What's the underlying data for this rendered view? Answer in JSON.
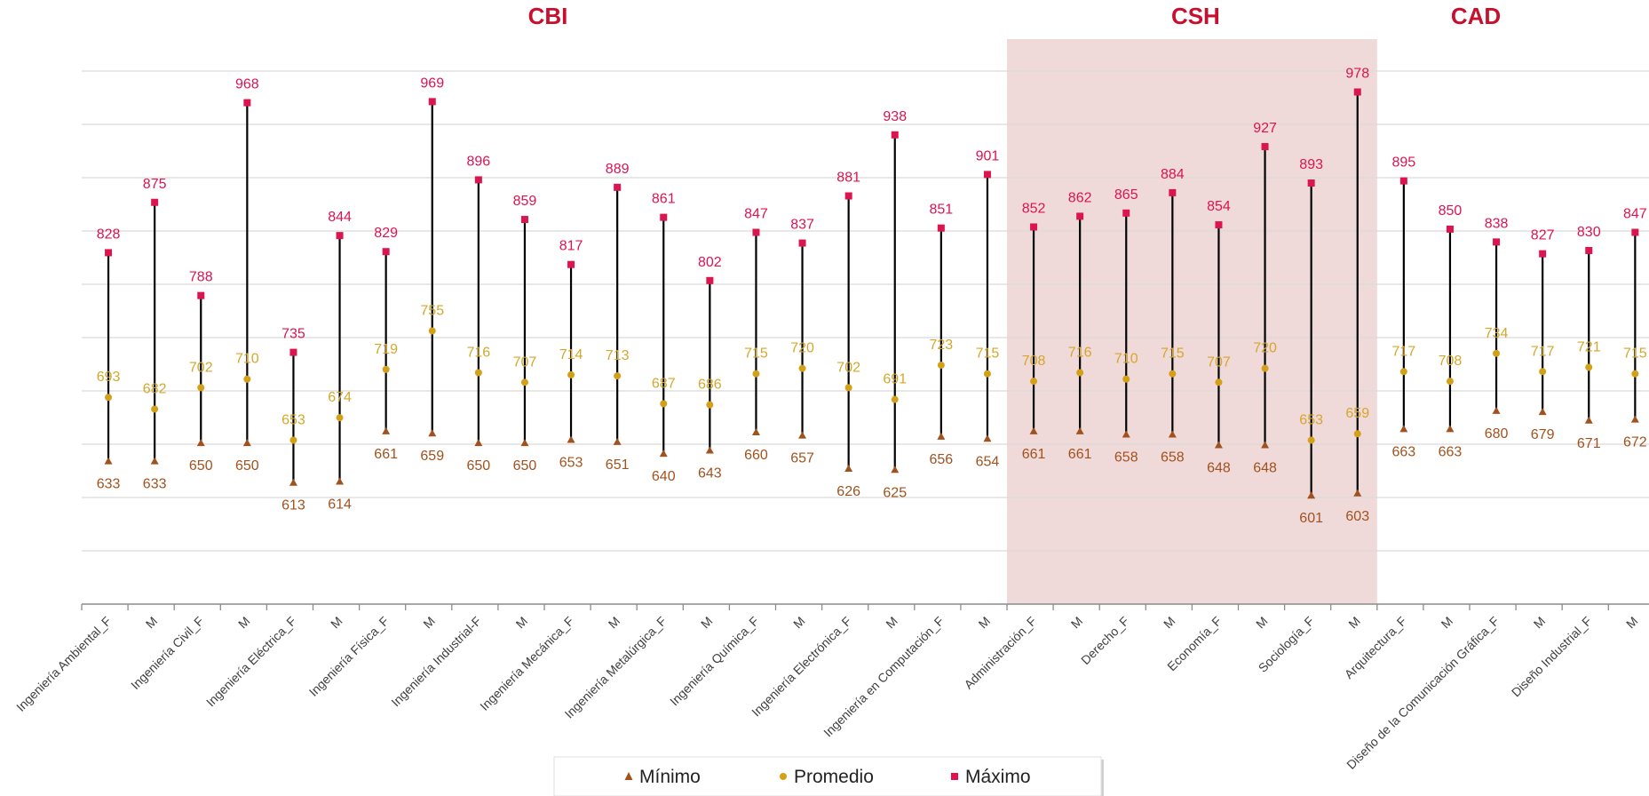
{
  "chart_data": {
    "type": "line",
    "subtype": "high-low-average",
    "categories": [
      "Ingeniería Ambiental_F",
      "M",
      "Ingeniería Civil_F",
      "M",
      "Ingeniería Eléctrica_F",
      "M",
      "Ingeniería Física_F",
      "M",
      "Ingeniería Industrial-F",
      "M",
      "Ingeniería Mecánica_F",
      "M",
      "Ingeniería Metalúrgica_F",
      "M",
      "Ingeniería Química_F",
      "M",
      "Ingeniería Electrónica_F",
      "M",
      "Ingeniería en Computación_F",
      "M",
      "Administración_F",
      "M",
      "Derecho_F",
      "M",
      "Economía_F",
      "M",
      "Sociología_F",
      "M",
      "Arquitectura_F",
      "M",
      "Diseño de la Comunicación Gráfica_F",
      "M",
      "Diseño Industrial_F",
      "M"
    ],
    "series": [
      {
        "name": "Mínimo",
        "color": "#a0521e",
        "label_color": "#a0521e",
        "marker": "triangle",
        "values": [
          633,
          633,
          650,
          650,
          613,
          614,
          661,
          659,
          650,
          650,
          653,
          651,
          640,
          643,
          660,
          657,
          626,
          625,
          656,
          654,
          661,
          661,
          658,
          658,
          648,
          648,
          601,
          603,
          663,
          663,
          680,
          679,
          671,
          672
        ]
      },
      {
        "name": "Promedio",
        "color": "#d4a017",
        "label_color": "#d4a72c",
        "marker": "circle",
        "values": [
          693,
          682,
          702,
          710,
          653,
          674,
          719,
          755,
          716,
          707,
          714,
          713,
          687,
          686,
          715,
          720,
          702,
          691,
          723,
          715,
          708,
          716,
          710,
          715,
          707,
          720,
          653,
          659,
          717,
          708,
          734,
          717,
          721,
          715
        ]
      },
      {
        "name": "Máximo",
        "color": "#dc1450",
        "label_color": "#dc1450",
        "marker": "square",
        "values": [
          828,
          875,
          788,
          968,
          735,
          844,
          829,
          969,
          896,
          859,
          817,
          889,
          861,
          802,
          847,
          837,
          881,
          938,
          851,
          901,
          852,
          862,
          865,
          884,
          854,
          927,
          893,
          978,
          895,
          850,
          838,
          827,
          830,
          847
        ]
      }
    ],
    "groups": [
      {
        "name": "CBI",
        "start": 0,
        "end": 19,
        "highlight": false
      },
      {
        "name": "CSH",
        "start": 20,
        "end": 27,
        "highlight": true
      },
      {
        "name": "CAD",
        "start": 28,
        "end": 33,
        "highlight": false
      }
    ],
    "ylim": [
      500,
      1000
    ],
    "grid": true,
    "legend_position": "bottom-center",
    "title": "",
    "xlabel": "",
    "ylabel": ""
  },
  "colors": {
    "group_title": "#c8102e",
    "highlight_band": "#f0d9d9",
    "gridline": "#d9d9d9",
    "axis": "#8c8c8c",
    "stem": "#000000"
  }
}
